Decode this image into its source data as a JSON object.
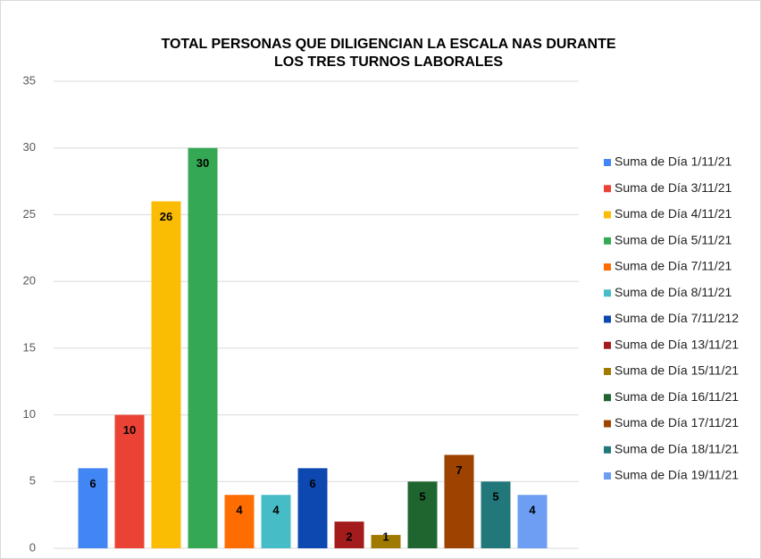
{
  "chart_data": {
    "type": "bar",
    "title": [
      "TOTAL PERSONAS QUE DILIGENCIAN LA ESCALA NAS DURANTE",
      "LOS TRES TURNOS LABORALES"
    ],
    "ylim": [
      0,
      35
    ],
    "yticks": [
      0,
      5,
      10,
      15,
      20,
      25,
      30,
      35
    ],
    "grid": true,
    "legend": "right",
    "series": [
      {
        "name": "Suma de Día 1/11/21",
        "color": "#4285f4",
        "values": [
          6
        ]
      },
      {
        "name": "Suma de Día 3/11/21",
        "color": "#ea4335",
        "values": [
          10
        ]
      },
      {
        "name": "Suma de Día 4/11/21",
        "color": "#fbbc04",
        "values": [
          26
        ]
      },
      {
        "name": "Suma de Día 5/11/21",
        "color": "#34a853",
        "values": [
          30
        ]
      },
      {
        "name": "Suma de Día 7/11/21",
        "color": "#ff6d01",
        "values": [
          4
        ]
      },
      {
        "name": "Suma de Día 8/11/21",
        "color": "#46bdc6",
        "values": [
          4
        ]
      },
      {
        "name": "Suma de Día 7/11/212",
        "color": "#0d47b0",
        "values": [
          6
        ]
      },
      {
        "name": "Suma de Día 13/11/21",
        "color": "#a31b1b",
        "values": [
          2
        ]
      },
      {
        "name": "Suma de Día 15/11/21",
        "color": "#a07a00",
        "values": [
          1
        ]
      },
      {
        "name": "Suma de Día 16/11/21",
        "color": "#1f6530",
        "values": [
          5
        ]
      },
      {
        "name": "Suma de Día 17/11/21",
        "color": "#9e4200",
        "values": [
          7
        ]
      },
      {
        "name": "Suma de Día 18/11/21",
        "color": "#217779",
        "values": [
          5
        ]
      },
      {
        "name": "Suma de Día 19/11/21",
        "color": "#6d9ef3",
        "values": [
          4
        ]
      }
    ]
  }
}
